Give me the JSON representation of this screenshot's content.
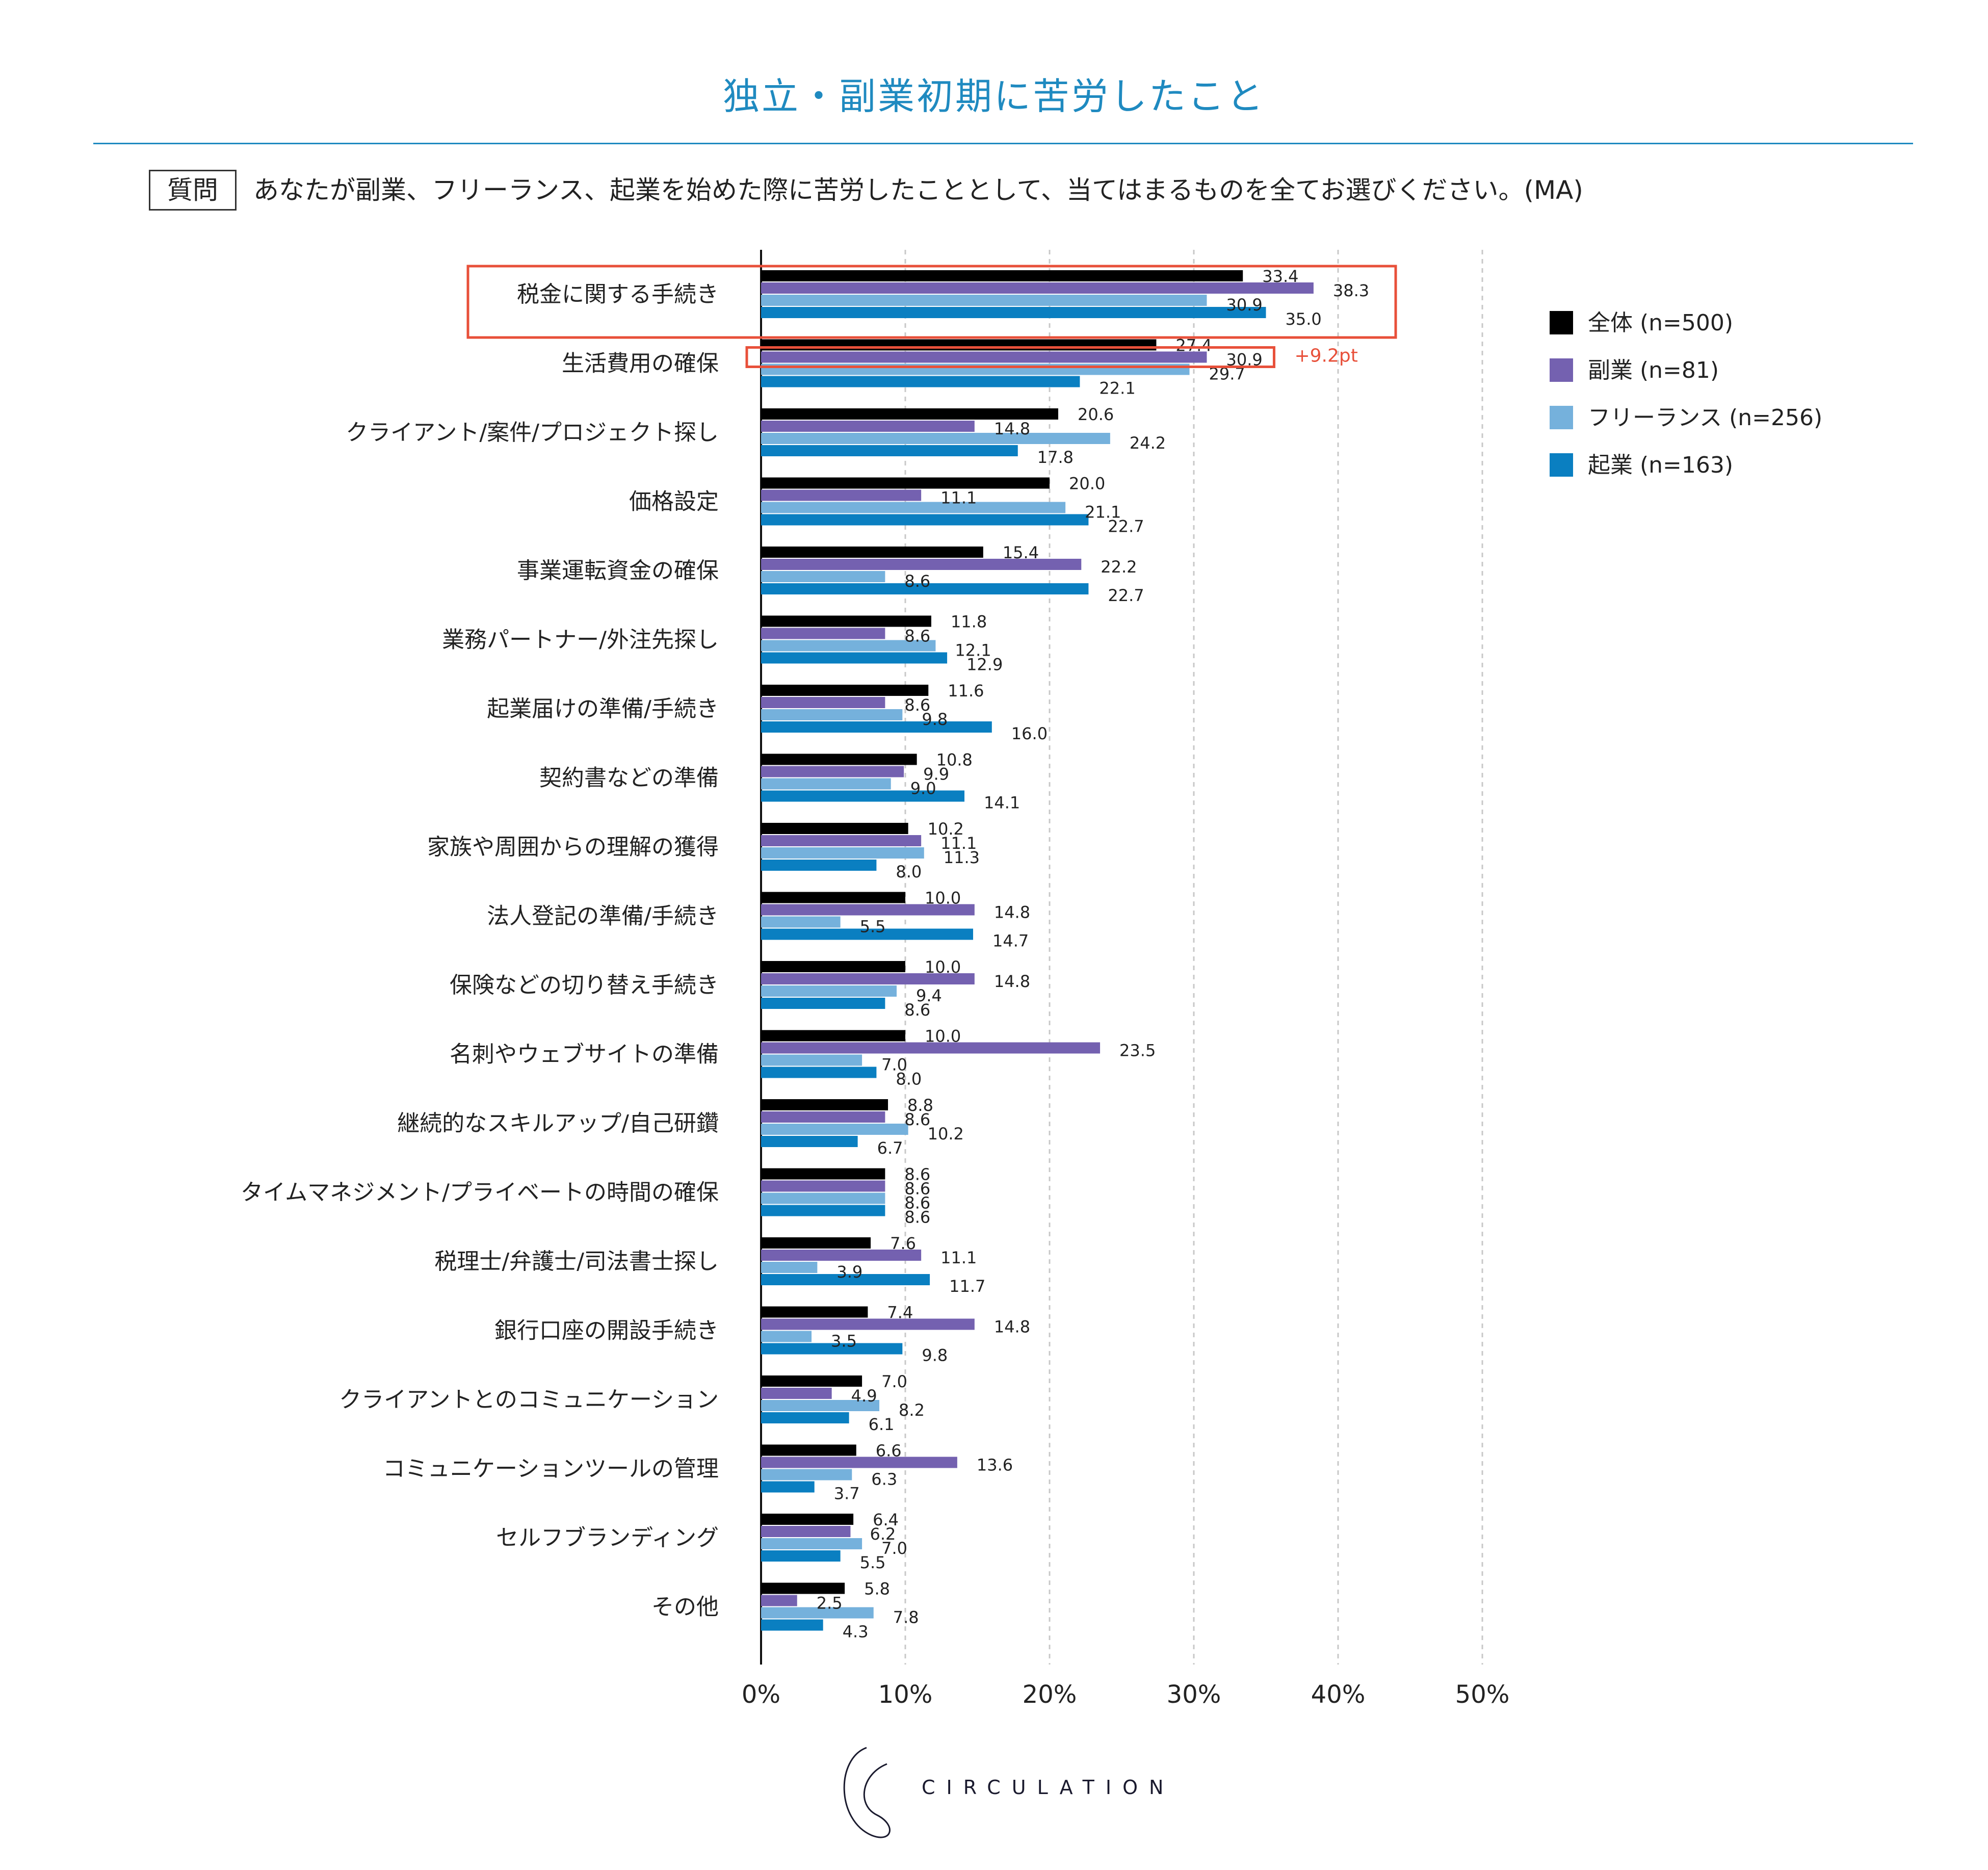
{
  "title": "独立・副業初期に苦労したこと",
  "question": {
    "tag": "質問",
    "text": "あなたが副業、フリーランス、起業を始めた際に苦労したこととして、当てはまるものを全てお選びください。(MA)"
  },
  "colors": {
    "accent": "#1f8ac0",
    "highlight": "#e8503a",
    "gridline": "#c8c8c8",
    "axis": "#111111"
  },
  "annotation": "+9.2pt",
  "logo": {
    "text": "CIRCULATION"
  },
  "chart_data": {
    "type": "bar",
    "orientation": "horizontal",
    "title": "独立・副業初期に苦労したこと",
    "xlabel": "",
    "ylabel": "",
    "xlim": [
      0,
      50
    ],
    "grid": true,
    "legend_position": "top-right",
    "xticks": [
      0,
      10,
      20,
      30,
      40,
      50
    ],
    "xtick_labels": [
      "0%",
      "10%",
      "20%",
      "30%",
      "40%",
      "50%"
    ],
    "categories": [
      "税金に関する手続き",
      "生活費用の確保",
      "クライアント/案件/プロジェクト探し",
      "価格設定",
      "事業運転資金の確保",
      "業務パートナー/外注先探し",
      "起業届けの準備/手続き",
      "契約書などの準備",
      "家族や周囲からの理解の獲得",
      "法人登記の準備/手続き",
      "保険などの切り替え手続き",
      "名刺やウェブサイトの準備",
      "継続的なスキルアップ/自己研鑽",
      "タイムマネジメント/プライベートの時間の確保",
      "税理士/弁護士/司法書士探し",
      "銀行口座の開設手続き",
      "クライアントとのコミュニケーション",
      "コミュニケーションツールの管理",
      "セルフブランディング",
      "その他"
    ],
    "series": [
      {
        "name": "全体 (n=500)",
        "color": "#000000",
        "values": [
          33.4,
          27.4,
          20.6,
          20.0,
          15.4,
          11.8,
          11.6,
          10.8,
          10.2,
          10.0,
          10.0,
          10.0,
          8.8,
          8.6,
          7.6,
          7.4,
          7.0,
          6.6,
          6.4,
          5.8
        ]
      },
      {
        "name": "副業 (n=81)",
        "color": "#7461b0",
        "values": [
          38.3,
          30.9,
          14.8,
          11.1,
          22.2,
          8.6,
          8.6,
          9.9,
          11.1,
          14.8,
          14.8,
          23.5,
          8.6,
          8.6,
          11.1,
          14.8,
          4.9,
          13.6,
          6.2,
          2.5
        ]
      },
      {
        "name": "フリーランス (n=256)",
        "color": "#75b1dc",
        "values": [
          30.9,
          29.7,
          24.2,
          21.1,
          8.6,
          12.1,
          9.8,
          9.0,
          11.3,
          5.5,
          9.4,
          7.0,
          10.2,
          8.6,
          3.9,
          3.5,
          8.2,
          6.3,
          7.0,
          7.8
        ]
      },
      {
        "name": "起業 (n=163)",
        "color": "#0a7fc1",
        "values": [
          35.0,
          22.1,
          17.8,
          22.7,
          22.7,
          12.9,
          16.0,
          14.1,
          8.0,
          14.7,
          8.6,
          8.0,
          6.7,
          8.6,
          11.7,
          9.8,
          6.1,
          3.7,
          5.5,
          4.3
        ]
      }
    ],
    "highlighted_categories": [
      "税金に関する手続き"
    ],
    "highlighted_bars": [
      {
        "category": "生活費用の確保",
        "series": "副業 (n=81)"
      }
    ]
  }
}
